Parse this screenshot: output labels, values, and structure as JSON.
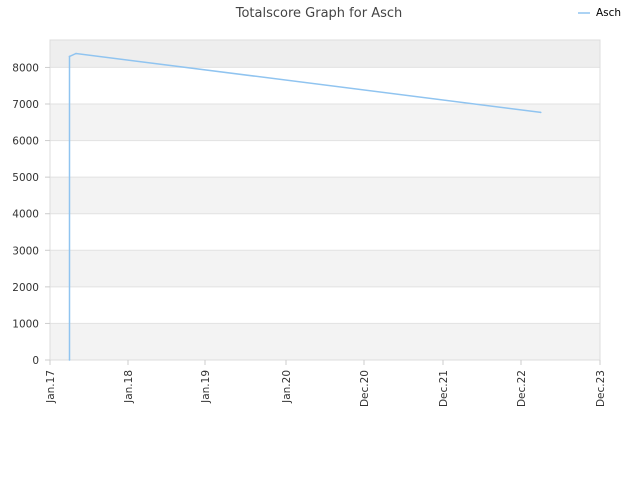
{
  "chart_data": {
    "type": "line",
    "title": "Totalscore Graph for Asch",
    "xlabel": "",
    "ylabel": "",
    "x_ticks": [
      "Jan.17",
      "Jan.18",
      "Jan.19",
      "Jan.20",
      "Dec.20",
      "Dec.21",
      "Dec.22",
      "Dec.23"
    ],
    "ylim": [
      0,
      8750
    ],
    "y_ticks": [
      0,
      1000,
      2000,
      3000,
      4000,
      5000,
      6000,
      7000,
      8000
    ],
    "grid": true,
    "legend": "top-right",
    "series": [
      {
        "name": "Asch",
        "color": "#90c4f0",
        "points": [
          {
            "x": "2017-04",
            "y": 0
          },
          {
            "x": "2017-04",
            "y": 8300
          },
          {
            "x": "2017-05",
            "y": 8380
          },
          {
            "x": "2023-03",
            "y": 6770
          }
        ]
      }
    ]
  }
}
